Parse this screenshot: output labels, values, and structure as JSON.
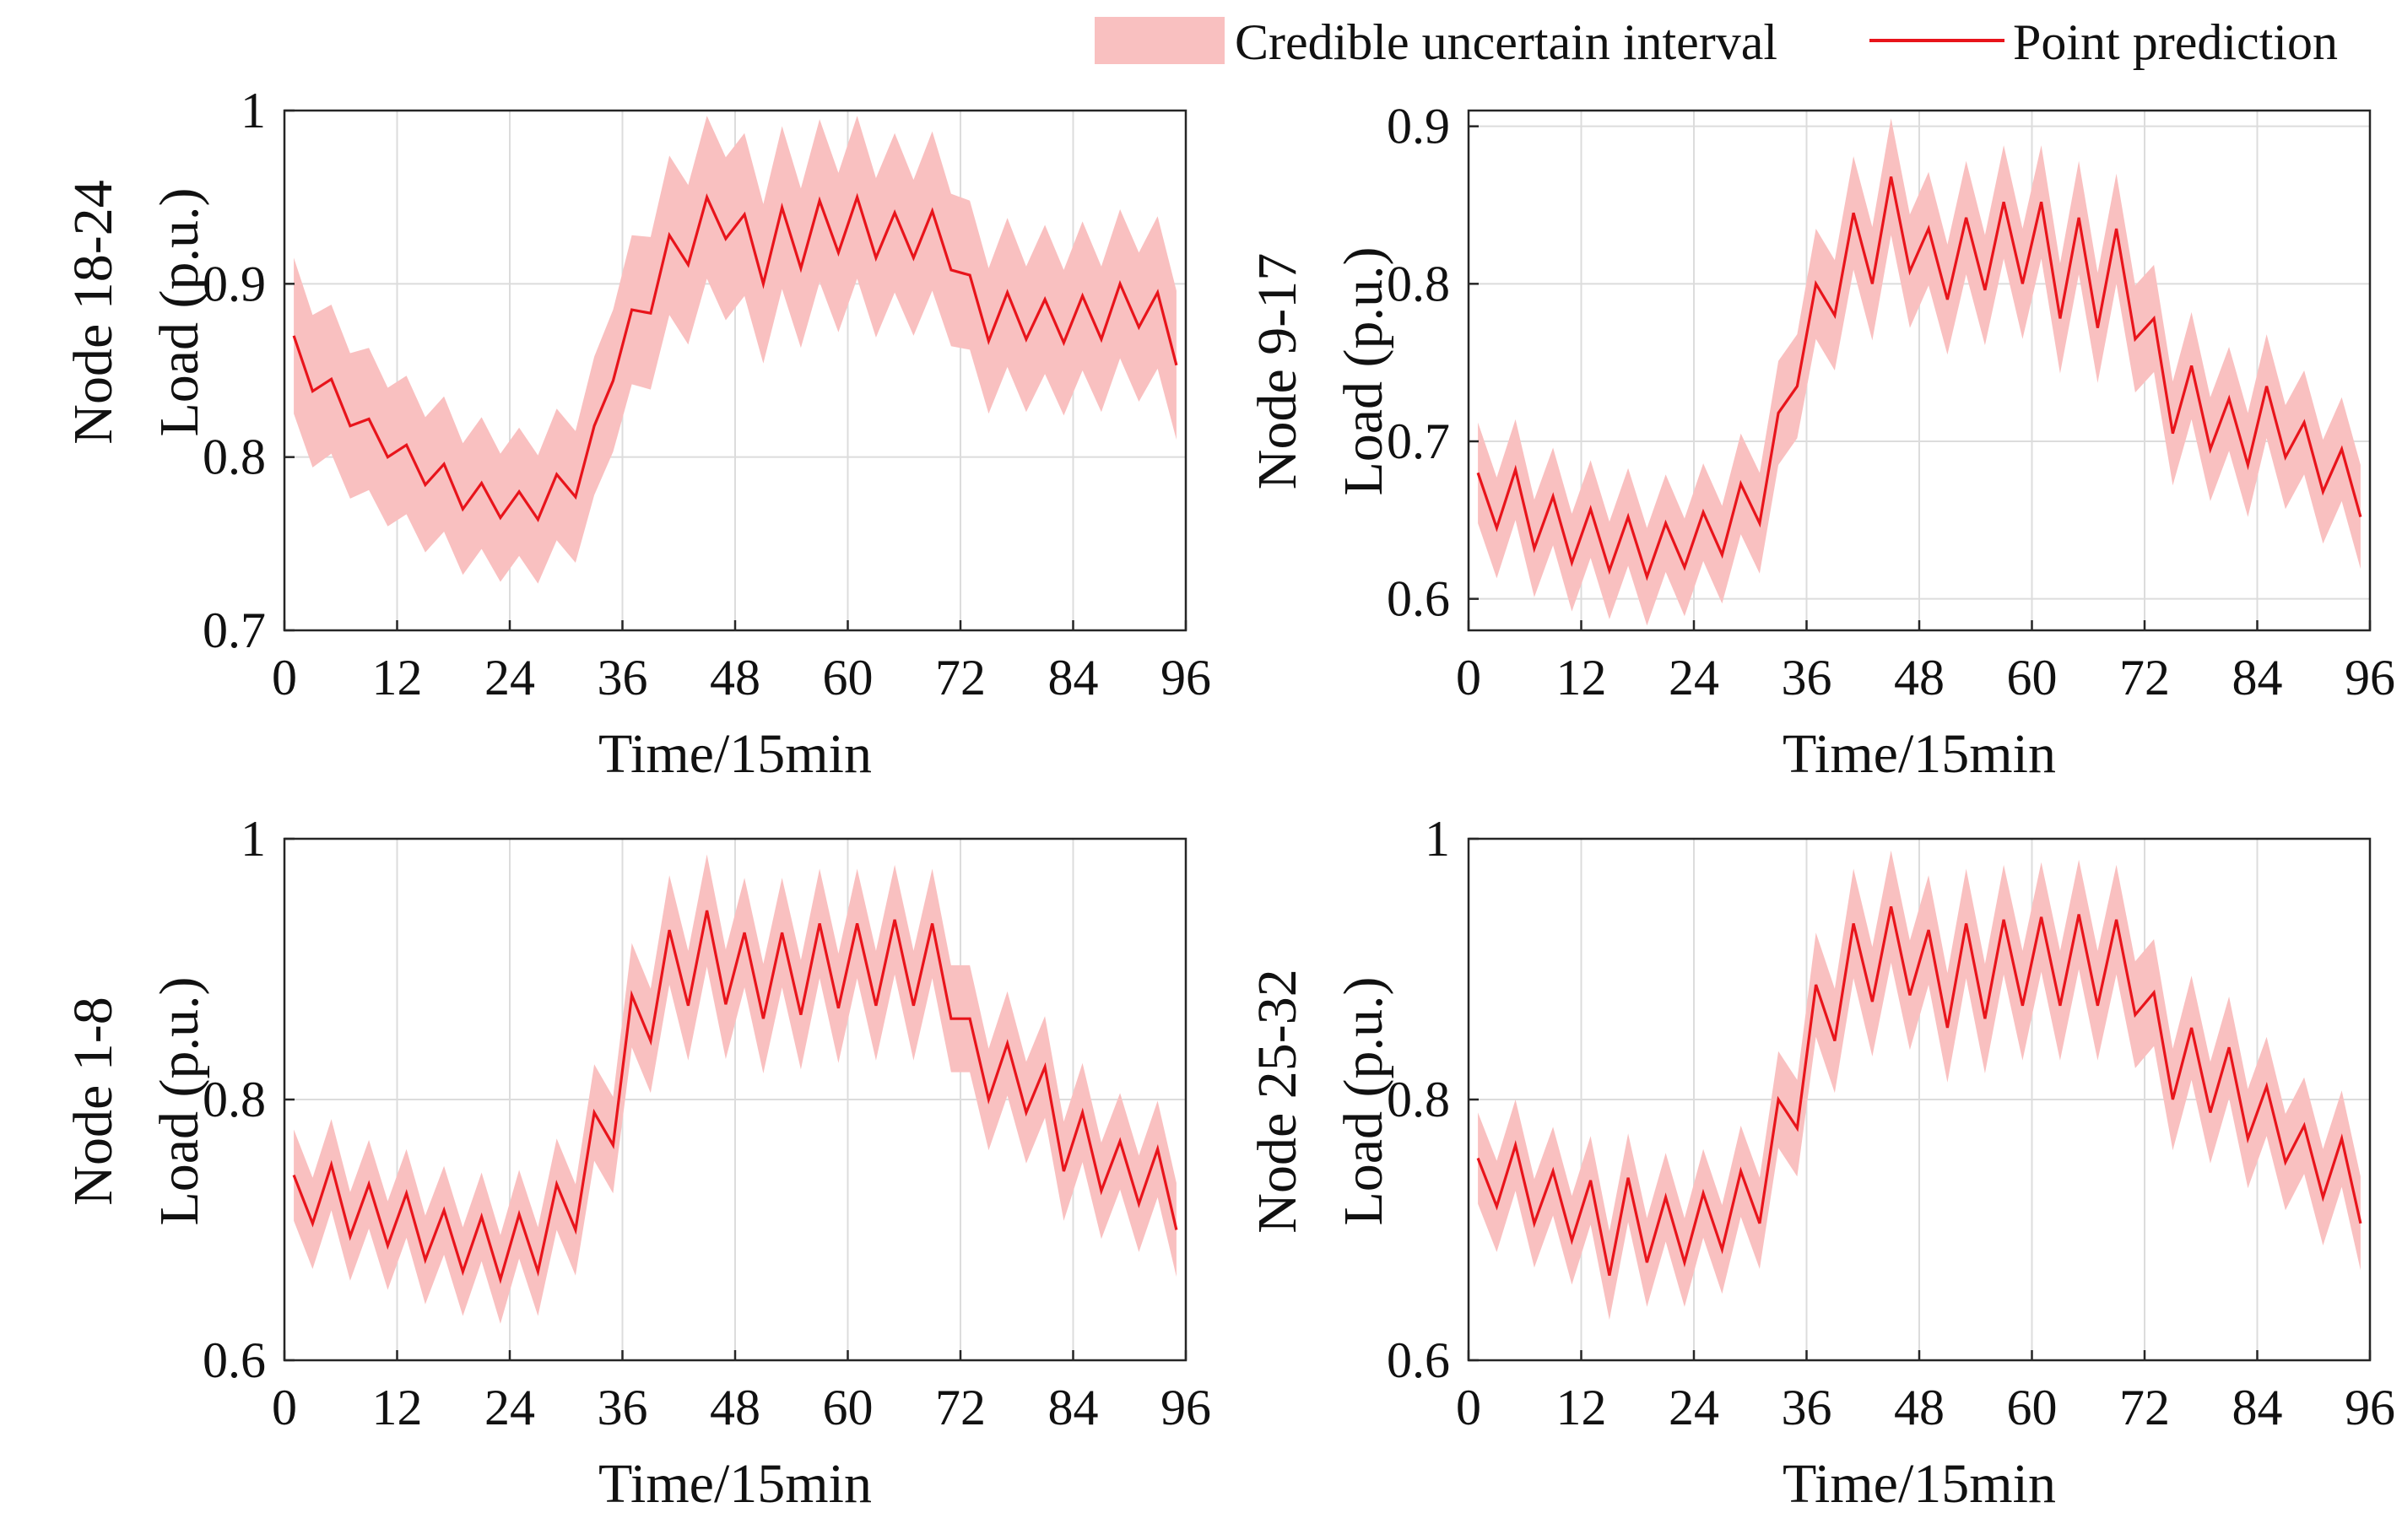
{
  "legend": {
    "interval_label": "Credible uncertain interval",
    "point_label": "Point prediction"
  },
  "colors": {
    "interval_fill": "#f9c0c0",
    "point_line": "#e8141b",
    "grid": "#dcdcdc",
    "axis": "#262626"
  },
  "chart_data": [
    {
      "type": "area",
      "node_label": "Node 18-24",
      "ylabel": "Load (p.u.)",
      "xlabel": "Time/15min",
      "xlim": [
        0,
        96
      ],
      "ylim": [
        0.7,
        1.0
      ],
      "xticks": [
        0,
        12,
        24,
        36,
        48,
        60,
        72,
        84,
        96
      ],
      "ytick_labels": [
        "0.7",
        "0.8",
        "0.9",
        "1"
      ],
      "grid": true,
      "series": [
        {
          "name": "Point prediction",
          "x": [
            1,
            3,
            5,
            7,
            9,
            11,
            13,
            15,
            17,
            19,
            21,
            23,
            25,
            27,
            29,
            31,
            33,
            35,
            37,
            39,
            41,
            43,
            45,
            47,
            49,
            51,
            53,
            55,
            57,
            59,
            61,
            63,
            65,
            67,
            69,
            71,
            73,
            75,
            77,
            79,
            81,
            83,
            85,
            87,
            89,
            91,
            93,
            95
          ],
          "y": [
            0.87,
            0.838,
            0.845,
            0.818,
            0.822,
            0.8,
            0.807,
            0.784,
            0.796,
            0.77,
            0.785,
            0.765,
            0.78,
            0.764,
            0.79,
            0.777,
            0.818,
            0.844,
            0.885,
            0.883,
            0.928,
            0.911,
            0.95,
            0.926,
            0.94,
            0.9,
            0.944,
            0.909,
            0.948,
            0.918,
            0.95,
            0.915,
            0.941,
            0.915,
            0.942,
            0.908,
            0.905,
            0.867,
            0.895,
            0.868,
            0.891,
            0.866,
            0.893,
            0.868,
            0.9,
            0.875,
            0.895,
            0.853
          ]
        }
      ],
      "interval": {
        "name": "Credible uncertain interval",
        "half_width": [
          0.045,
          0.044,
          0.043,
          0.042,
          0.041,
          0.04,
          0.04,
          0.039,
          0.039,
          0.038,
          0.038,
          0.037,
          0.037,
          0.037,
          0.038,
          0.038,
          0.04,
          0.041,
          0.043,
          0.044,
          0.046,
          0.046,
          0.047,
          0.047,
          0.047,
          0.046,
          0.047,
          0.046,
          0.047,
          0.046,
          0.047,
          0.046,
          0.046,
          0.045,
          0.046,
          0.044,
          0.043,
          0.042,
          0.043,
          0.042,
          0.043,
          0.042,
          0.043,
          0.042,
          0.043,
          0.043,
          0.044,
          0.043
        ]
      }
    },
    {
      "type": "area",
      "node_label": "Node 9-17",
      "ylabel": "Load (p.u.)",
      "xlabel": "Time/15min",
      "xlim": [
        0,
        96
      ],
      "ylim": [
        0.58,
        0.91
      ],
      "xticks": [
        0,
        12,
        24,
        36,
        48,
        60,
        72,
        84,
        96
      ],
      "ytick_labels": [
        "0.6",
        "0.7",
        "0.8",
        "0.9"
      ],
      "grid": true,
      "series": [
        {
          "name": "Point prediction",
          "x": [
            1,
            3,
            5,
            7,
            9,
            11,
            13,
            15,
            17,
            19,
            21,
            23,
            25,
            27,
            29,
            31,
            33,
            35,
            37,
            39,
            41,
            43,
            45,
            47,
            49,
            51,
            53,
            55,
            57,
            59,
            61,
            63,
            65,
            67,
            69,
            71,
            73,
            75,
            77,
            79,
            81,
            83,
            85,
            87,
            89,
            91,
            93,
            95
          ],
          "y": [
            0.68,
            0.645,
            0.682,
            0.632,
            0.665,
            0.623,
            0.657,
            0.618,
            0.652,
            0.614,
            0.648,
            0.62,
            0.655,
            0.628,
            0.673,
            0.648,
            0.718,
            0.735,
            0.8,
            0.78,
            0.845,
            0.8,
            0.868,
            0.808,
            0.835,
            0.79,
            0.842,
            0.796,
            0.852,
            0.8,
            0.852,
            0.778,
            0.842,
            0.772,
            0.835,
            0.765,
            0.778,
            0.705,
            0.748,
            0.695,
            0.727,
            0.685,
            0.735,
            0.69,
            0.712,
            0.668,
            0.695,
            0.652
          ]
        }
      ],
      "interval": {
        "name": "Credible uncertain interval",
        "half_width": [
          0.032,
          0.032,
          0.032,
          0.031,
          0.031,
          0.031,
          0.031,
          0.031,
          0.031,
          0.031,
          0.031,
          0.031,
          0.031,
          0.031,
          0.032,
          0.032,
          0.033,
          0.033,
          0.035,
          0.035,
          0.036,
          0.036,
          0.037,
          0.036,
          0.036,
          0.035,
          0.036,
          0.035,
          0.036,
          0.035,
          0.036,
          0.035,
          0.036,
          0.035,
          0.035,
          0.034,
          0.034,
          0.033,
          0.034,
          0.033,
          0.033,
          0.033,
          0.033,
          0.033,
          0.033,
          0.033,
          0.033,
          0.033
        ]
      }
    },
    {
      "type": "area",
      "node_label": "Node 1-8",
      "ylabel": "Load (p.u.)",
      "xlabel": "Time/15min",
      "xlim": [
        0,
        96
      ],
      "ylim": [
        0.6,
        1.0
      ],
      "xticks": [
        0,
        12,
        24,
        36,
        48,
        60,
        72,
        84,
        96
      ],
      "ytick_labels": [
        "0.6",
        "0.8",
        "1"
      ],
      "grid": true,
      "series": [
        {
          "name": "Point prediction",
          "x": [
            1,
            3,
            5,
            7,
            9,
            11,
            13,
            15,
            17,
            19,
            21,
            23,
            25,
            27,
            29,
            31,
            33,
            35,
            37,
            39,
            41,
            43,
            45,
            47,
            49,
            51,
            53,
            55,
            57,
            59,
            61,
            63,
            65,
            67,
            69,
            71,
            73,
            75,
            77,
            79,
            81,
            83,
            85,
            87,
            89,
            91,
            93,
            95
          ],
          "y": [
            0.742,
            0.705,
            0.75,
            0.695,
            0.735,
            0.688,
            0.728,
            0.677,
            0.715,
            0.668,
            0.71,
            0.662,
            0.712,
            0.668,
            0.735,
            0.7,
            0.79,
            0.765,
            0.88,
            0.845,
            0.93,
            0.872,
            0.945,
            0.873,
            0.928,
            0.862,
            0.928,
            0.865,
            0.935,
            0.87,
            0.935,
            0.872,
            0.938,
            0.872,
            0.935,
            0.862,
            0.862,
            0.8,
            0.843,
            0.79,
            0.825,
            0.745,
            0.79,
            0.73,
            0.768,
            0.72,
            0.762,
            0.7
          ]
        }
      ],
      "interval": {
        "name": "Credible uncertain interval",
        "half_width": [
          0.035,
          0.035,
          0.035,
          0.034,
          0.034,
          0.034,
          0.034,
          0.034,
          0.034,
          0.034,
          0.034,
          0.034,
          0.034,
          0.034,
          0.035,
          0.035,
          0.037,
          0.037,
          0.04,
          0.04,
          0.042,
          0.042,
          0.043,
          0.042,
          0.042,
          0.042,
          0.042,
          0.042,
          0.042,
          0.042,
          0.042,
          0.042,
          0.042,
          0.042,
          0.042,
          0.041,
          0.041,
          0.039,
          0.04,
          0.039,
          0.039,
          0.038,
          0.038,
          0.037,
          0.037,
          0.037,
          0.037,
          0.036
        ]
      }
    },
    {
      "type": "area",
      "node_label": "Node 25-32",
      "ylabel": "Load (p.u.)",
      "xlabel": "Time/15min",
      "xlim": [
        0,
        96
      ],
      "ylim": [
        0.6,
        1.0
      ],
      "xticks": [
        0,
        12,
        24,
        36,
        48,
        60,
        72,
        84,
        96
      ],
      "ytick_labels": [
        "0.6",
        "0.8",
        "1"
      ],
      "grid": true,
      "series": [
        {
          "name": "Point prediction",
          "x": [
            1,
            3,
            5,
            7,
            9,
            11,
            13,
            15,
            17,
            19,
            21,
            23,
            25,
            27,
            29,
            31,
            33,
            35,
            37,
            39,
            41,
            43,
            45,
            47,
            49,
            51,
            53,
            55,
            57,
            59,
            61,
            63,
            65,
            67,
            69,
            71,
            73,
            75,
            77,
            79,
            81,
            83,
            85,
            87,
            89,
            91,
            93,
            95
          ],
          "y": [
            0.755,
            0.718,
            0.765,
            0.705,
            0.745,
            0.692,
            0.738,
            0.665,
            0.74,
            0.675,
            0.725,
            0.675,
            0.728,
            0.685,
            0.745,
            0.705,
            0.8,
            0.778,
            0.888,
            0.845,
            0.935,
            0.875,
            0.948,
            0.88,
            0.93,
            0.855,
            0.935,
            0.862,
            0.938,
            0.872,
            0.94,
            0.872,
            0.942,
            0.872,
            0.938,
            0.865,
            0.882,
            0.8,
            0.855,
            0.79,
            0.84,
            0.77,
            0.81,
            0.752,
            0.78,
            0.725,
            0.77,
            0.705
          ]
        }
      ],
      "interval": {
        "name": "Credible uncertain interval",
        "half_width": [
          0.035,
          0.035,
          0.035,
          0.034,
          0.034,
          0.034,
          0.034,
          0.034,
          0.034,
          0.034,
          0.034,
          0.034,
          0.034,
          0.034,
          0.035,
          0.035,
          0.037,
          0.037,
          0.04,
          0.04,
          0.042,
          0.042,
          0.043,
          0.042,
          0.042,
          0.042,
          0.042,
          0.042,
          0.042,
          0.042,
          0.042,
          0.042,
          0.042,
          0.042,
          0.042,
          0.041,
          0.041,
          0.039,
          0.04,
          0.039,
          0.039,
          0.038,
          0.038,
          0.037,
          0.037,
          0.037,
          0.037,
          0.036
        ]
      }
    }
  ]
}
